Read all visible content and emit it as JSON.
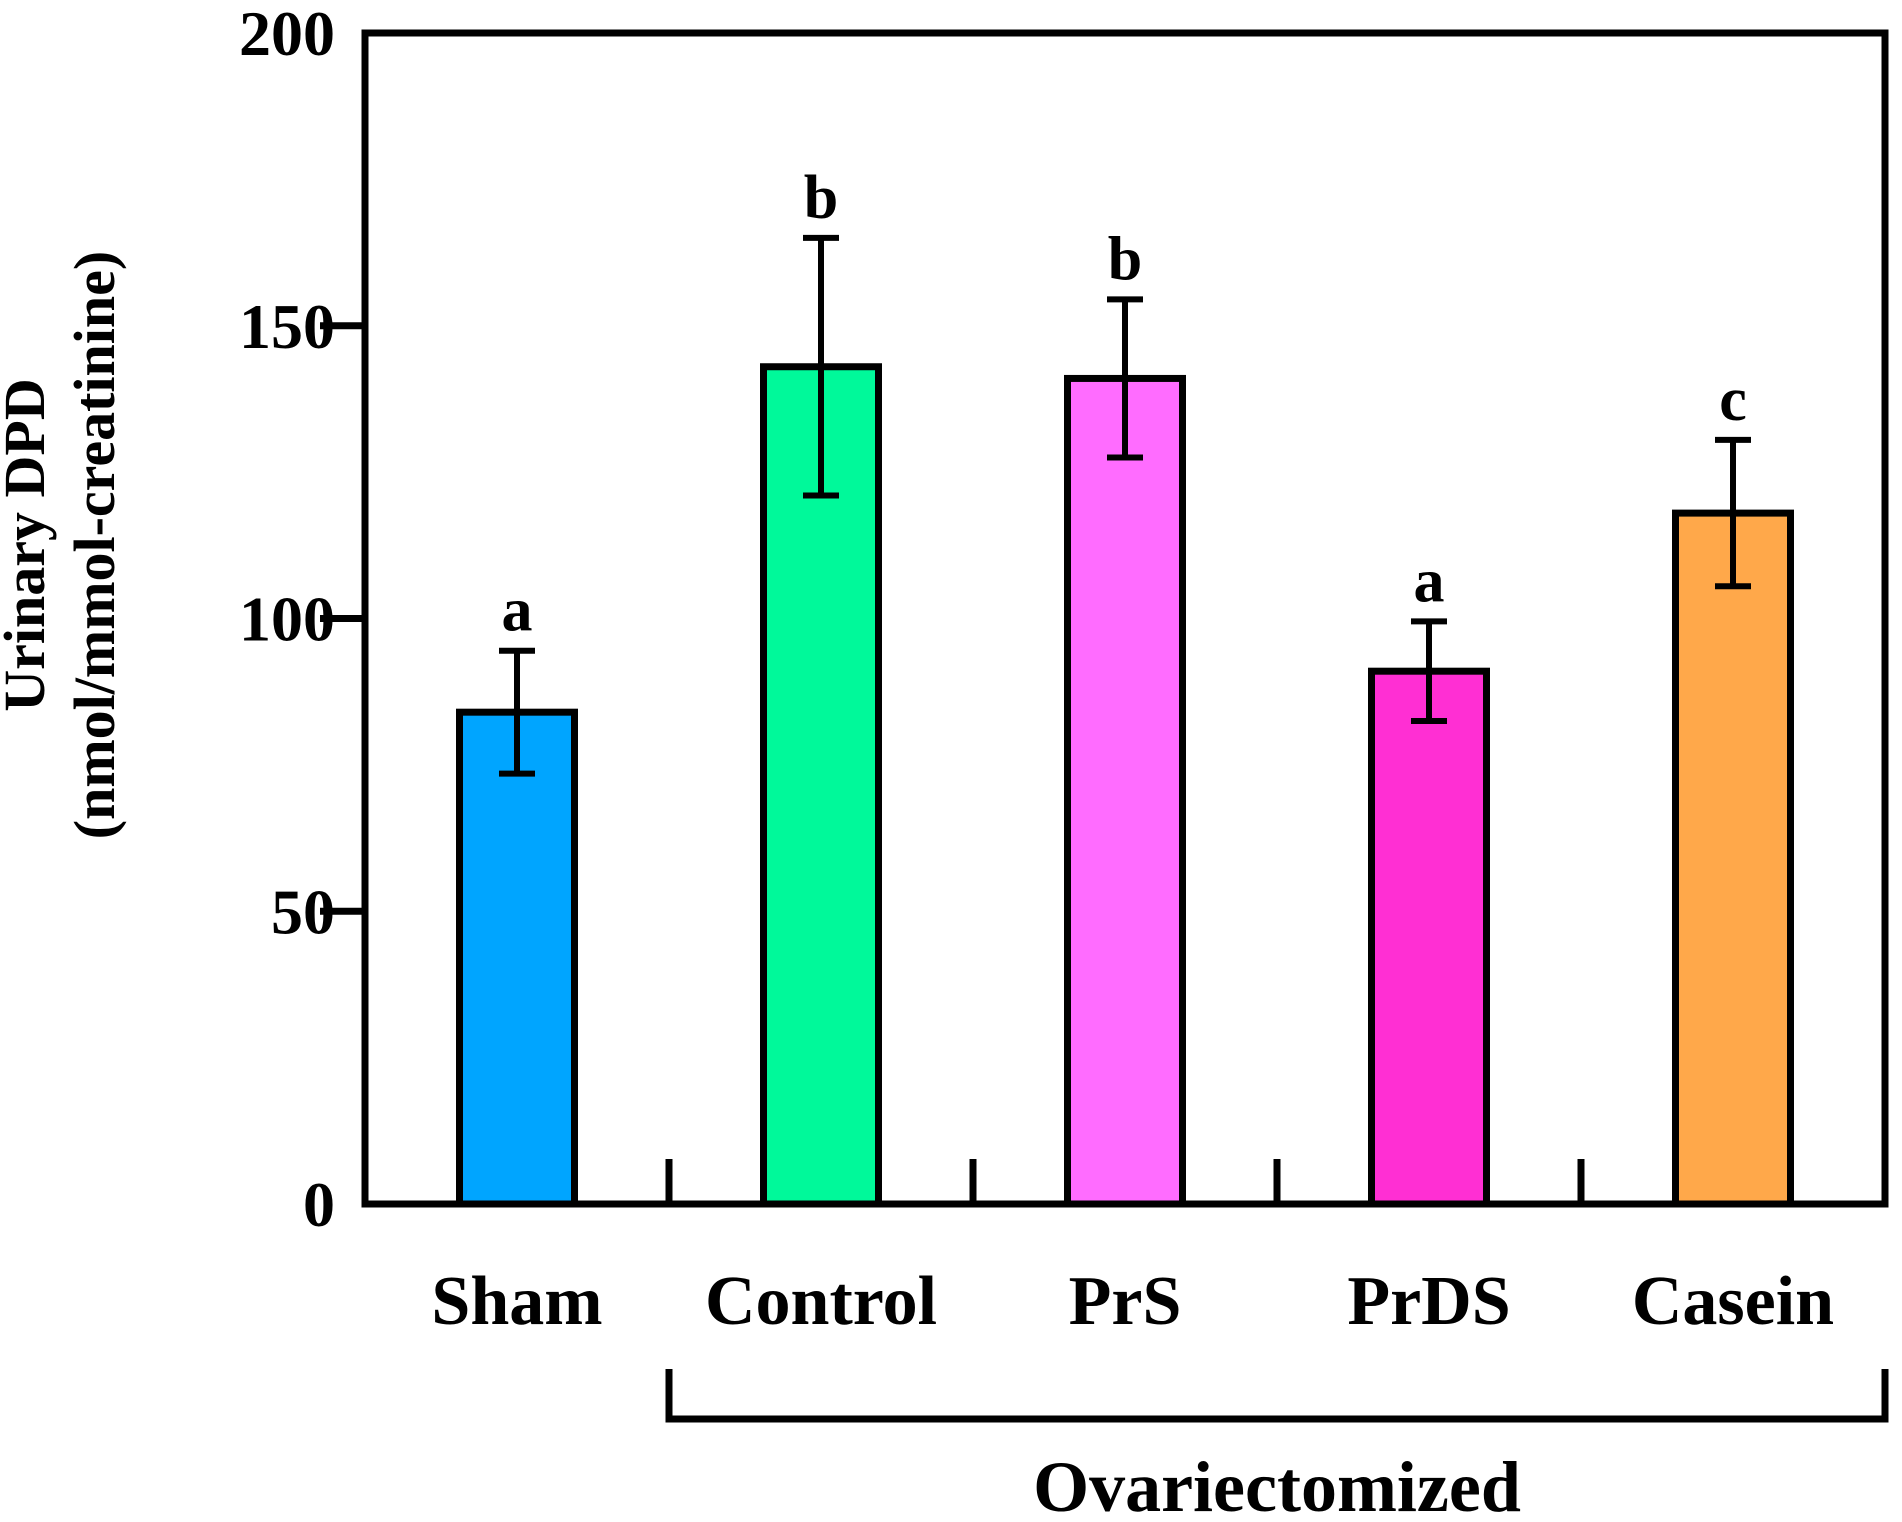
{
  "chart_data": {
    "type": "bar",
    "title": "",
    "xlabel": "",
    "ylabel": "Urinary DPD",
    "ylabel_unit": "(nmol/mmol-creatinine)",
    "ylim": [
      0,
      200
    ],
    "yticks": [
      0,
      50,
      100,
      150,
      200
    ],
    "ytick_labels": [
      "0",
      "50",
      "100",
      "150",
      "200"
    ],
    "categories": [
      "Sham",
      "Control",
      "PrS",
      "PrDS",
      "Casein"
    ],
    "values": [
      84,
      143,
      141,
      91,
      118
    ],
    "errors": [
      10.5,
      22,
      13.5,
      8.5,
      12.5
    ],
    "significance": [
      "a",
      "b",
      "b",
      "a",
      "c"
    ],
    "colors": [
      "#00a5ff",
      "#00f99a",
      "#ff6cff",
      "#ff2fd3",
      "#ffa84a"
    ],
    "group": {
      "label": "Ovariectomized",
      "members": [
        "Control",
        "PrS",
        "PrDS",
        "Casein"
      ]
    },
    "grid": false,
    "legend": "none"
  }
}
